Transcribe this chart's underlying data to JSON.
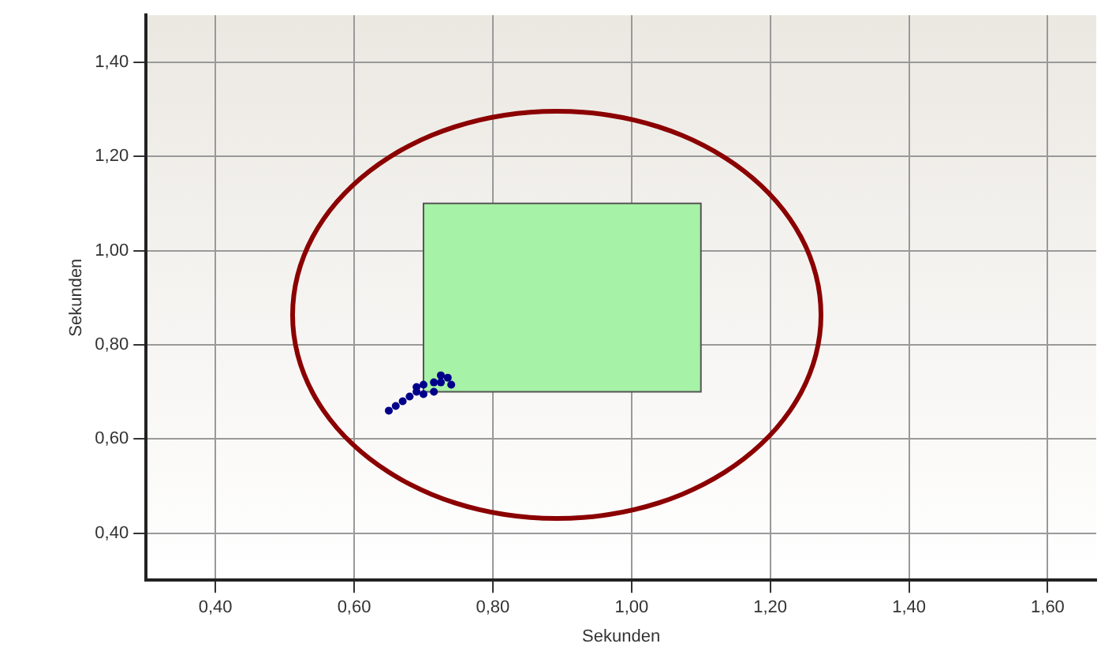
{
  "chart_data": {
    "type": "scatter",
    "xlabel": "Sekunden",
    "ylabel": "Sekunden",
    "xlim": [
      0.3,
      1.67
    ],
    "ylim": [
      0.3,
      1.5
    ],
    "xticks": [
      {
        "value": 0.4,
        "label": "0,40"
      },
      {
        "value": 0.6,
        "label": "0,60"
      },
      {
        "value": 0.8,
        "label": "0,80"
      },
      {
        "value": 1.0,
        "label": "1,00"
      },
      {
        "value": 1.2,
        "label": "1,20"
      },
      {
        "value": 1.4,
        "label": "1,40"
      },
      {
        "value": 1.6,
        "label": "1,60"
      }
    ],
    "yticks": [
      {
        "value": 0.4,
        "label": "0,40"
      },
      {
        "value": 0.6,
        "label": "0,60"
      },
      {
        "value": 0.8,
        "label": "0,80"
      },
      {
        "value": 1.0,
        "label": "1,00"
      },
      {
        "value": 1.2,
        "label": "1,20"
      },
      {
        "value": 1.4,
        "label": "1,40"
      }
    ],
    "grid": true,
    "legend": false,
    "marker": "circle",
    "series": [
      {
        "type": "area",
        "marker": "none",
        "color": "#a6f2a6",
        "x": [
          0.7,
          0.7,
          1.1,
          1.1,
          0.7
        ],
        "values": [
          0.7,
          1.1,
          1.1,
          0.7,
          0.7
        ]
      },
      {
        "color": "#00008b",
        "x": [
          0.65,
          0.66,
          0.67,
          0.68,
          0.69,
          0.7,
          0.7,
          0.715,
          0.715,
          0.725,
          0.735,
          0.74,
          0.725,
          0.69
        ],
        "values": [
          0.66,
          0.67,
          0.68,
          0.69,
          0.7,
          0.695,
          0.715,
          0.7,
          0.72,
          0.72,
          0.73,
          0.715,
          0.735,
          0.71
        ]
      }
    ]
  }
}
